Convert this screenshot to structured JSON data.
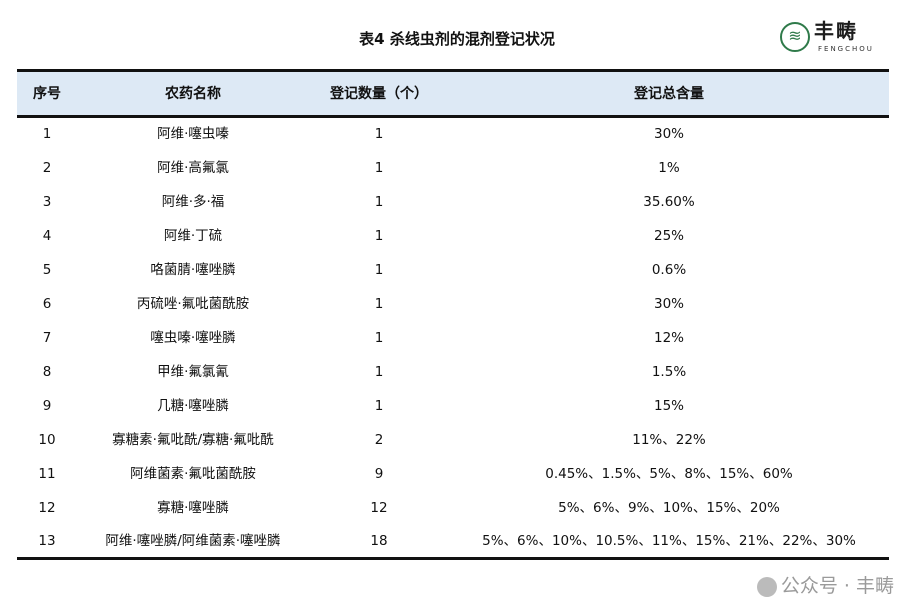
{
  "title": "表4 杀线虫剂的混剂登记状况",
  "logo": {
    "name": "丰畴",
    "sub": "FENGCHOU"
  },
  "headers": [
    "序号",
    "农药名称",
    "登记数量（个）",
    "登记总含量"
  ],
  "rows": [
    [
      "1",
      "阿维·噻虫嗪",
      "1",
      "30%"
    ],
    [
      "2",
      "阿维·高氟氯",
      "1",
      "1%"
    ],
    [
      "3",
      "阿维·多·福",
      "1",
      "35.60%"
    ],
    [
      "4",
      "阿维·丁硫",
      "1",
      "25%"
    ],
    [
      "5",
      "咯菌腈·噻唑膦",
      "1",
      "0.6%"
    ],
    [
      "6",
      "丙硫唑·氟吡菌酰胺",
      "1",
      "30%"
    ],
    [
      "7",
      "噻虫嗪·噻唑膦",
      "1",
      "12%"
    ],
    [
      "8",
      "甲维·氟氯氰",
      "1",
      "1.5%"
    ],
    [
      "9",
      "几糖·噻唑膦",
      "1",
      "15%"
    ],
    [
      "10",
      "寡糖素·氟吡酰/寡糖·氟吡酰",
      "2",
      "11%、22%"
    ],
    [
      "11",
      "阿维菌素·氟吡菌酰胺",
      "9",
      "0.45%、1.5%、5%、8%、15%、60%"
    ],
    [
      "12",
      "寡糖·噻唑膦",
      "12",
      "5%、6%、9%、10%、15%、20%"
    ],
    [
      "13",
      "阿维·噻唑膦/阿维菌素·噻唑膦",
      "18",
      "5%、6%、10%、10.5%、11%、15%、21%、22%、30%"
    ]
  ],
  "watermark": "公众号 · 丰畴",
  "colors": {
    "header_bg": "#dde9f5",
    "logo_green": "#2f7a4a"
  }
}
